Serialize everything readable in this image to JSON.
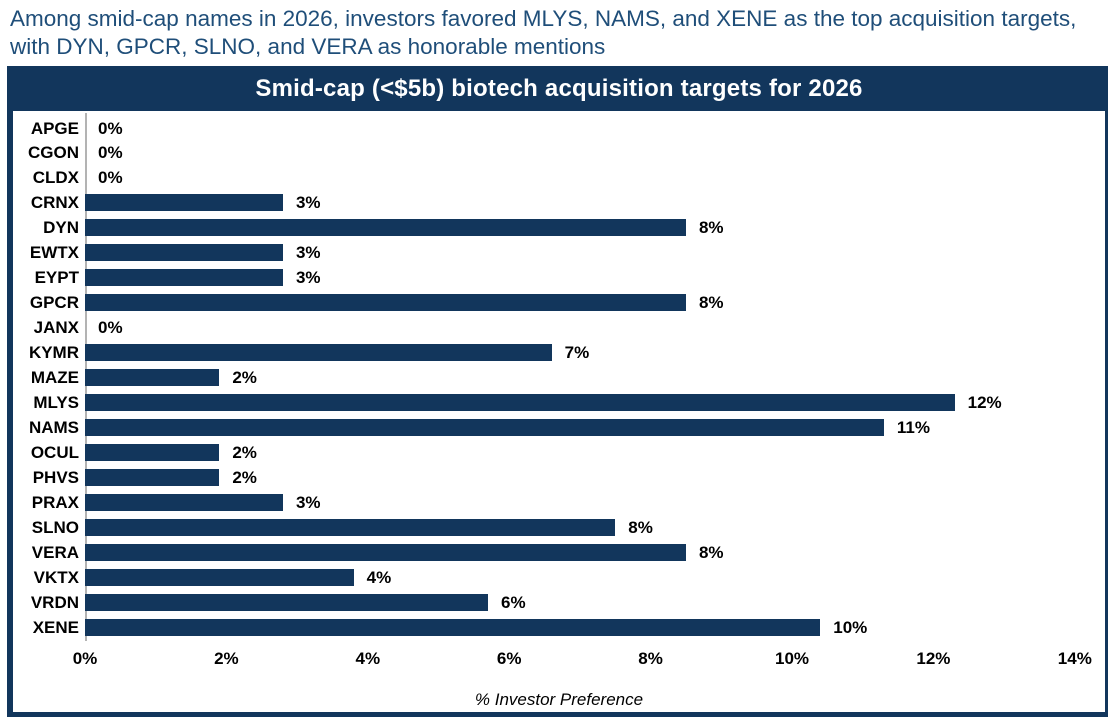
{
  "page": {
    "heading": "Among smid-cap names in 2026, investors favored MLYS, NAMS, and XENE as the top acquisition targets, with DYN, GPCR, SLNO, and VERA as honorable mentions"
  },
  "colors": {
    "navy": "#12365c",
    "heading_blue": "#1f4e79",
    "title_text": "#ffffff",
    "axis_line_gray": "#b3b3b3",
    "label_text": "#000000"
  },
  "chart_data": {
    "type": "bar",
    "orientation": "horizontal",
    "title": "Smid-cap (<$5b) biotech acquisition targets for 2026",
    "xlabel": "% Investor Preference",
    "xlim": [
      0,
      14
    ],
    "x_tick_values": [
      0,
      2,
      4,
      6,
      8,
      10,
      12,
      14
    ],
    "x_tick_labels": [
      "0%",
      "2%",
      "4%",
      "6%",
      "8%",
      "10%",
      "12%",
      "14%"
    ],
    "grid": false,
    "legend": "none",
    "categories": [
      "APGE",
      "CGON",
      "CLDX",
      "CRNX",
      "DYN",
      "EWTX",
      "EYPT",
      "GPCR",
      "JANX",
      "KYMR",
      "MAZE",
      "MLYS",
      "NAMS",
      "OCUL",
      "PHVS",
      "PRAX",
      "SLNO",
      "VERA",
      "VKTX",
      "VRDN",
      "XENE"
    ],
    "values": [
      0,
      0,
      0,
      3,
      8,
      3,
      3,
      8,
      0,
      7,
      2,
      12,
      11,
      2,
      2,
      3,
      8,
      8,
      4,
      6,
      10
    ],
    "value_labels": [
      "0%",
      "0%",
      "0%",
      "3%",
      "8%",
      "3%",
      "3%",
      "8%",
      "0%",
      "7%",
      "2%",
      "12%",
      "11%",
      "2%",
      "2%",
      "3%",
      "8%",
      "8%",
      "4%",
      "6%",
      "10%"
    ],
    "bar_lengths_pct_est": [
      0,
      0,
      0,
      2.8,
      8.5,
      2.8,
      2.8,
      8.5,
      0,
      6.6,
      1.9,
      12.3,
      11.3,
      1.9,
      1.9,
      2.8,
      7.5,
      8.5,
      3.8,
      5.7,
      10.4
    ],
    "bar_color": "#12365c"
  }
}
